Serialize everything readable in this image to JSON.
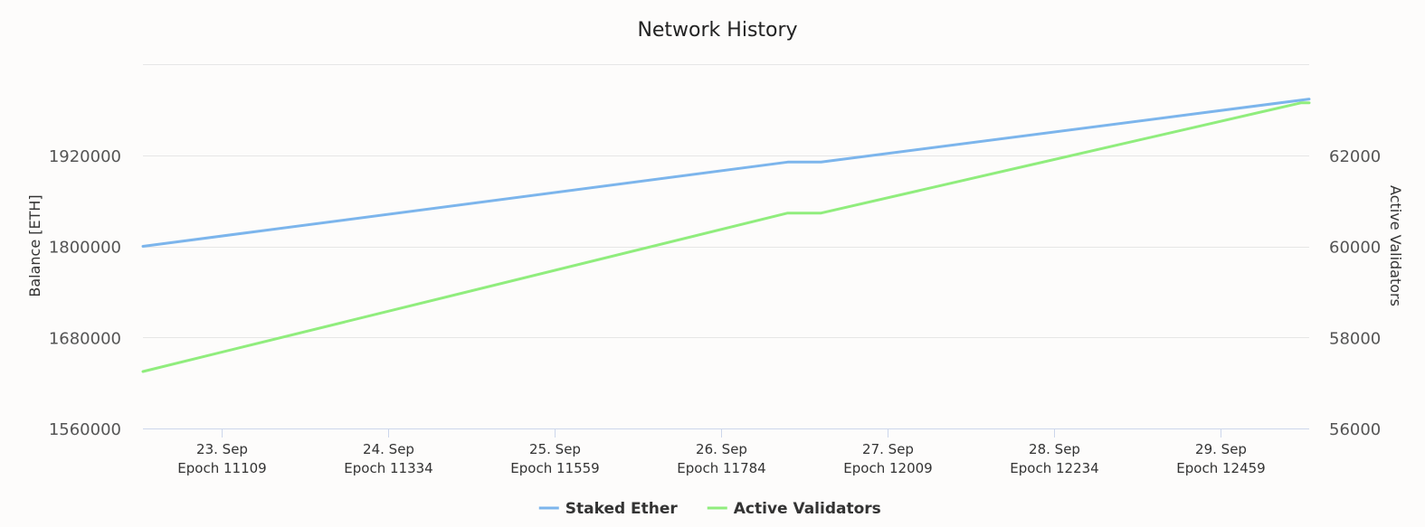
{
  "chart_data": {
    "type": "line",
    "title": "Network History",
    "y_left": {
      "label": "Balance [ETH]",
      "ticks": [
        "1560000",
        "1680000",
        "1800000",
        "1920000"
      ],
      "tick_values": [
        1560000,
        1680000,
        1800000,
        1920000
      ],
      "range": [
        1560000,
        2040000
      ]
    },
    "y_right": {
      "label": "Active Validators",
      "ticks": [
        "56000",
        "58000",
        "60000",
        "62000"
      ],
      "tick_values": [
        56000,
        58000,
        60000,
        62000
      ],
      "range": [
        56000,
        64000
      ]
    },
    "x_range": [
      22.53,
      29.53
    ],
    "x_ticks": [
      {
        "x": 23,
        "date": "23. Sep",
        "epoch": "Epoch 11109"
      },
      {
        "x": 24,
        "date": "24. Sep",
        "epoch": "Epoch 11334"
      },
      {
        "x": 25,
        "date": "25. Sep",
        "epoch": "Epoch 11559"
      },
      {
        "x": 26,
        "date": "26. Sep",
        "epoch": "Epoch 11784"
      },
      {
        "x": 27,
        "date": "27. Sep",
        "epoch": "Epoch 12009"
      },
      {
        "x": 28,
        "date": "28. Sep",
        "epoch": "Epoch 12234"
      },
      {
        "x": 29,
        "date": "29. Sep",
        "epoch": "Epoch 12459"
      }
    ],
    "series": [
      {
        "name": "Staked Ether",
        "axis": "left",
        "color": "#7cb5ec",
        "points": [
          [
            22.53,
            1800000
          ],
          [
            26.4,
            1911000
          ],
          [
            26.6,
            1911000
          ],
          [
            29.53,
            1994000
          ]
        ]
      },
      {
        "name": "Active Validators",
        "axis": "right",
        "color": "#90ed7d",
        "points": [
          [
            22.53,
            57250
          ],
          [
            26.4,
            60730
          ],
          [
            26.6,
            60730
          ],
          [
            29.48,
            63150
          ],
          [
            29.53,
            63150
          ]
        ]
      }
    ],
    "grid": true,
    "legend": "bottom-center"
  }
}
